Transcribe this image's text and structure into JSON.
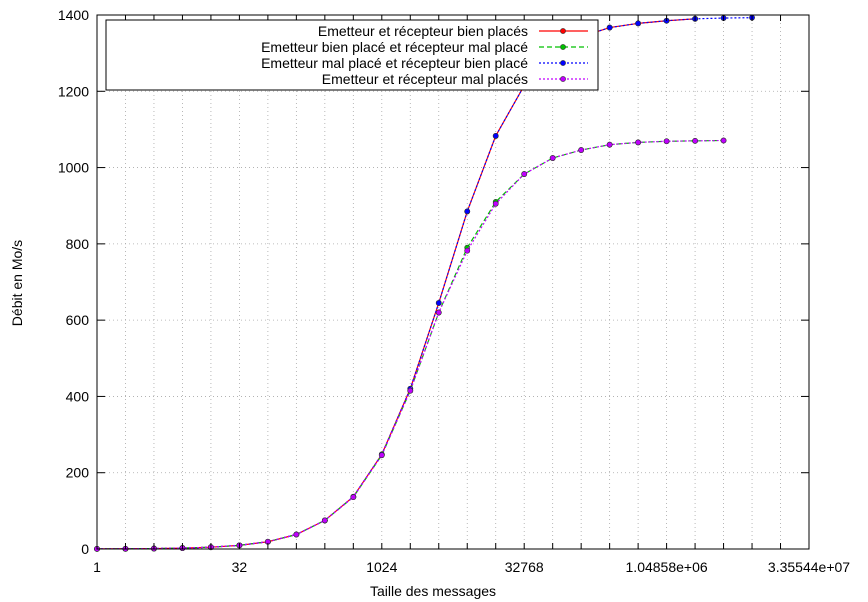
{
  "chart_data": {
    "type": "line",
    "xlabel": "Taille des messages",
    "ylabel": "Débit en Mo/s",
    "x_scale": "log2",
    "xlim": [
      1,
      33554432
    ],
    "ylim": [
      0,
      1400
    ],
    "x_ticks": [
      {
        "value": 1,
        "label": "1"
      },
      {
        "value": 32,
        "label": "32"
      },
      {
        "value": 1024,
        "label": "1024"
      },
      {
        "value": 32768,
        "label": "32768"
      },
      {
        "value": 1048576,
        "label": "1.04858e+06"
      },
      {
        "value": 33554432,
        "label": "3.35544e+07"
      }
    ],
    "y_ticks": [
      0,
      200,
      400,
      600,
      800,
      1000,
      1200,
      1400
    ],
    "grid": true,
    "legend_position": "top-left",
    "x": [
      1,
      2,
      4,
      8,
      16,
      32,
      64,
      128,
      256,
      512,
      1024,
      2048,
      4096,
      8192,
      16384,
      32768,
      65536,
      131072,
      262144,
      524288,
      1048576,
      2097152,
      4194304,
      8388608
    ],
    "series": [
      {
        "name": "Emetteur et récepteur bien placés",
        "color": "#ff0000",
        "dash": "solid",
        "values": [
          0.3,
          0.6,
          1.2,
          2.4,
          4.8,
          9.6,
          19,
          38,
          75,
          137,
          248,
          420,
          645,
          885,
          1083,
          1215,
          1300,
          1343,
          1367,
          1378,
          1385,
          1390,
          null,
          null
        ]
      },
      {
        "name": "Emetteur bien placé et récepteur mal placé",
        "color": "#00c000",
        "dash": "dashed",
        "values": [
          0.3,
          0.6,
          1.2,
          2.4,
          4.8,
          9.6,
          19,
          38,
          75,
          136,
          246,
          415,
          620,
          790,
          910,
          983,
          1025,
          1046,
          1060,
          1066,
          1069,
          1070,
          1071,
          null
        ]
      },
      {
        "name": "Emetteur mal placé et récepteur bien placé",
        "color": "#0000ff",
        "dash": "dotted",
        "values": [
          0.3,
          0.6,
          1.2,
          2.4,
          4.8,
          9.6,
          19,
          38,
          75,
          137,
          248,
          420,
          645,
          885,
          1083,
          1215,
          1300,
          1343,
          1367,
          1378,
          1385,
          1390,
          1392,
          1393
        ]
      },
      {
        "name": "Emetteur et récepteur mal placés",
        "color": "#c000ff",
        "dash": "dotted",
        "values": [
          0.3,
          0.6,
          1.2,
          2.4,
          4.8,
          9.6,
          19,
          38,
          75,
          136,
          246,
          415,
          620,
          782,
          905,
          983,
          1025,
          1046,
          1060,
          1066,
          1069,
          1070,
          1071,
          null
        ]
      }
    ]
  }
}
